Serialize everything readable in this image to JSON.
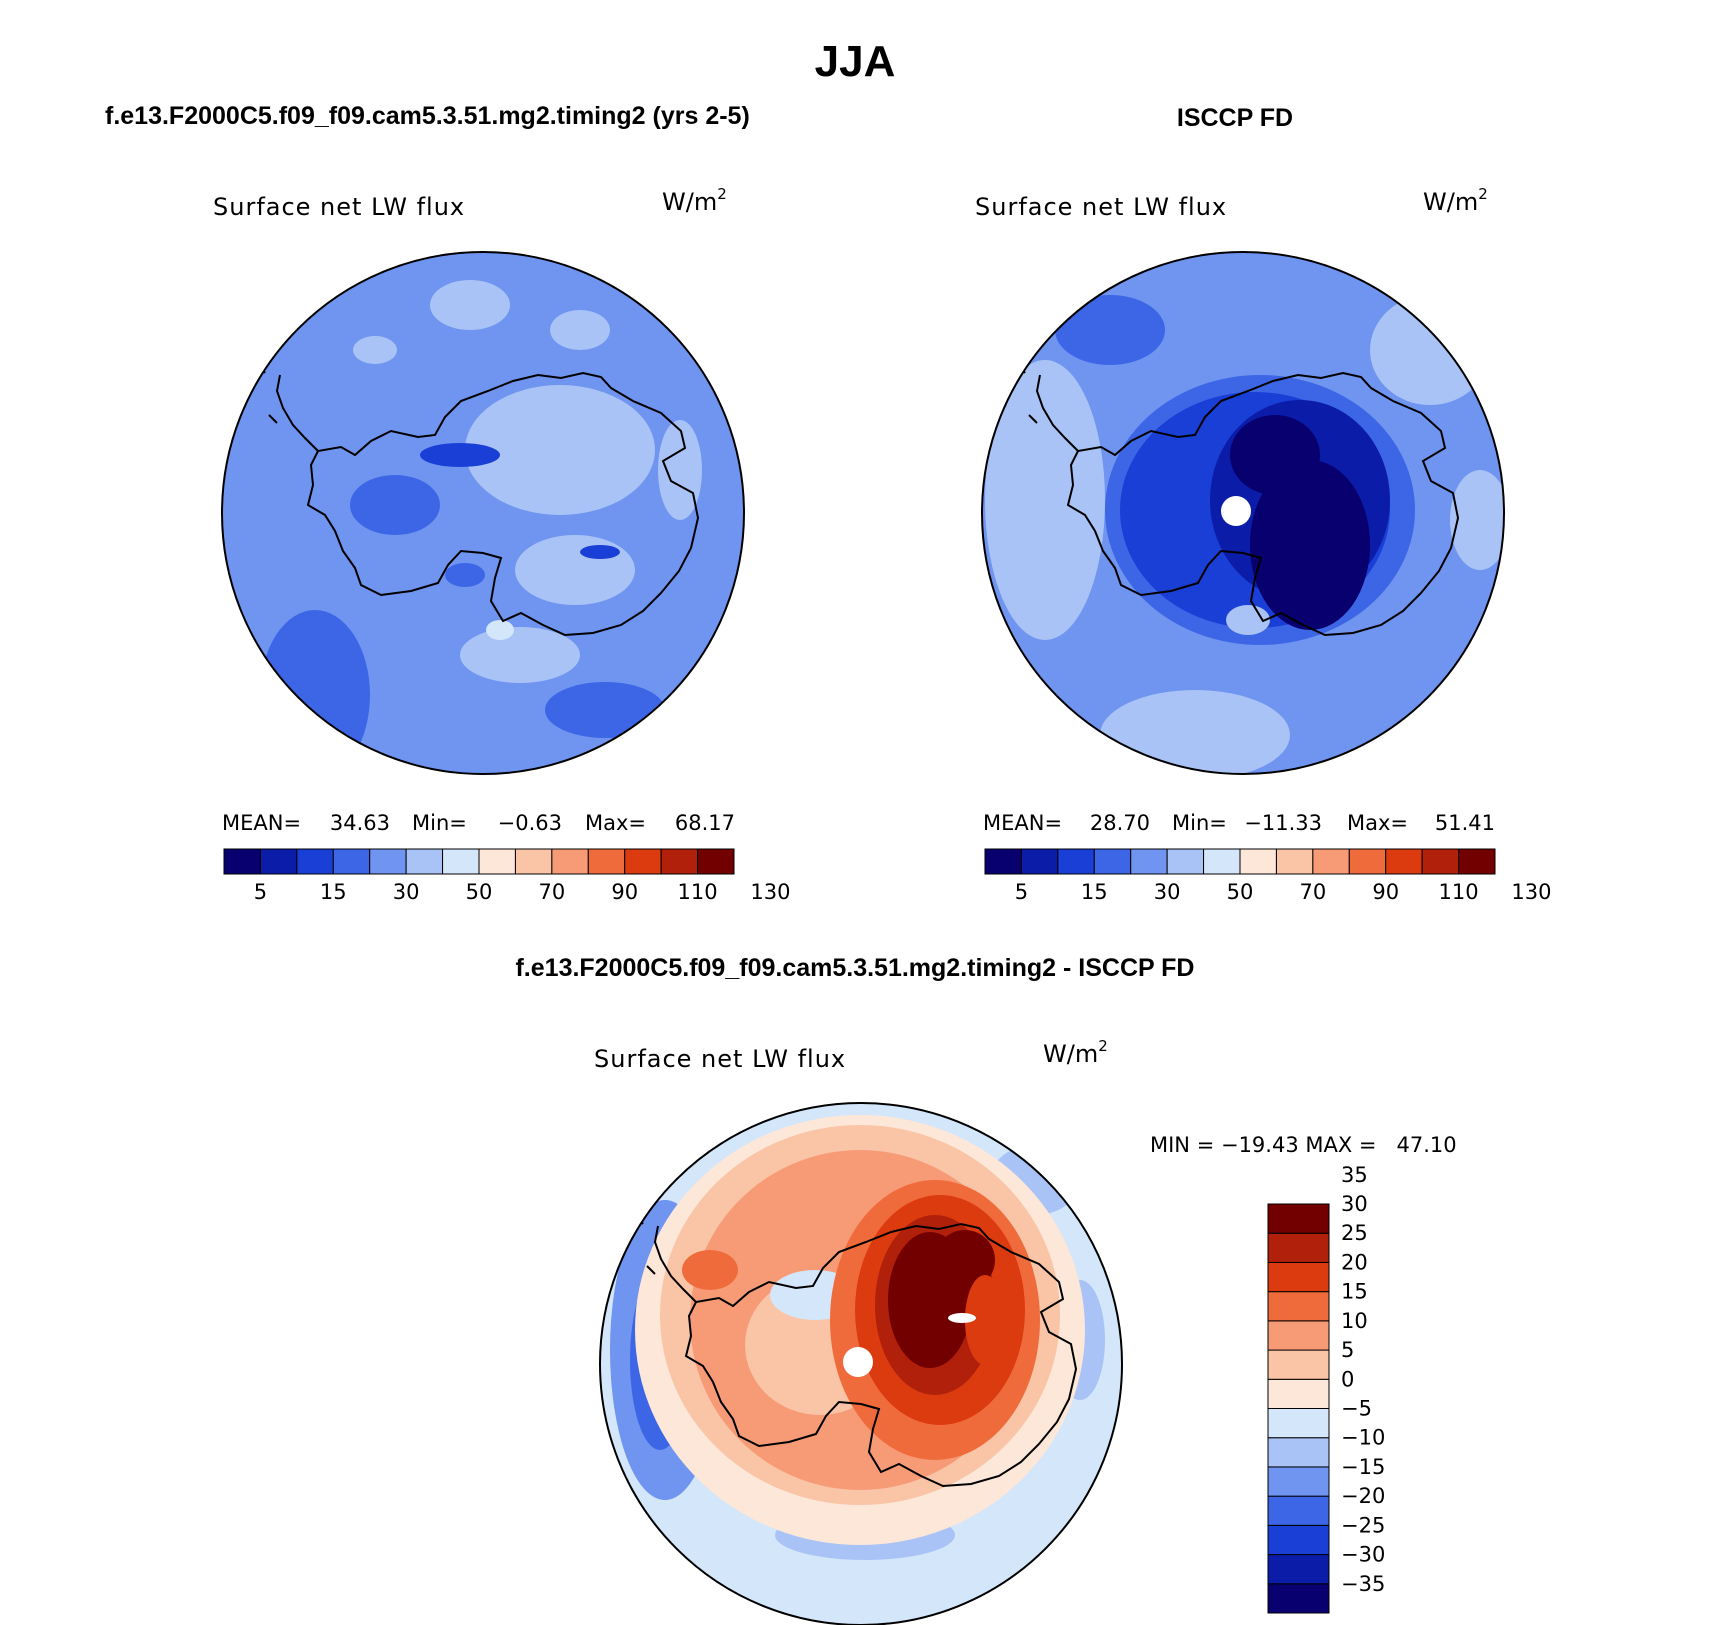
{
  "figure": {
    "season": "JJA",
    "left_title": "f.e13.F2000C5.f09_f09.cam5.3.51.mg2.timing2 (yrs 2-5)",
    "right_title": "ISCCP FD",
    "diff_title": "f.e13.F2000C5.f09_f09.cam5.3.51.mg2.timing2 - ISCCP FD"
  },
  "panels": {
    "model": {
      "field_label": "Surface net LW flux",
      "units_base": "W/m",
      "units_exp": "2",
      "stats": {
        "mean_label": "MEAN=",
        "mean": "34.63",
        "min_label": "Min=",
        "min": "−0.63",
        "max_label": "Max=",
        "max": "68.17"
      }
    },
    "obs": {
      "field_label": "Surface net LW flux",
      "units_base": "W/m",
      "units_exp": "2",
      "stats": {
        "mean_label": "MEAN=",
        "mean": "28.70",
        "min_label": "Min=",
        "min": "−11.33",
        "max_label": "Max=",
        "max": "51.41"
      }
    },
    "diff": {
      "field_label": "Surface net LW flux",
      "units_base": "W/m",
      "units_exp": "2",
      "stats_text": "MIN = −19.43 MAX =   47.10"
    }
  },
  "colorbars": {
    "abs": {
      "colors": [
        "#08006f",
        "#0a1ca8",
        "#1a3fd6",
        "#3c66e6",
        "#6f95f0",
        "#a9c3f6",
        "#d3e6fa",
        "#fde7d8",
        "#fac4a6",
        "#f79b77",
        "#f06b3c",
        "#dc3a0f",
        "#b0200a",
        "#730000"
      ],
      "labels": [
        "5",
        "15",
        "30",
        "50",
        "70",
        "90",
        "110",
        "130"
      ]
    },
    "diff": {
      "colors": [
        "#08006f",
        "#0a1ca8",
        "#1a3fd6",
        "#3c66e6",
        "#6f95f0",
        "#a9c3f6",
        "#d3e6fa",
        "#fde7d8",
        "#fac4a6",
        "#f79b77",
        "#f06b3c",
        "#dc3a0f",
        "#b0200a",
        "#730000"
      ],
      "labels": [
        "−35",
        "−30",
        "−25",
        "−20",
        "−15",
        "−10",
        "−5",
        "0",
        "5",
        "10",
        "15",
        "20",
        "25",
        "30",
        "35"
      ]
    }
  }
}
